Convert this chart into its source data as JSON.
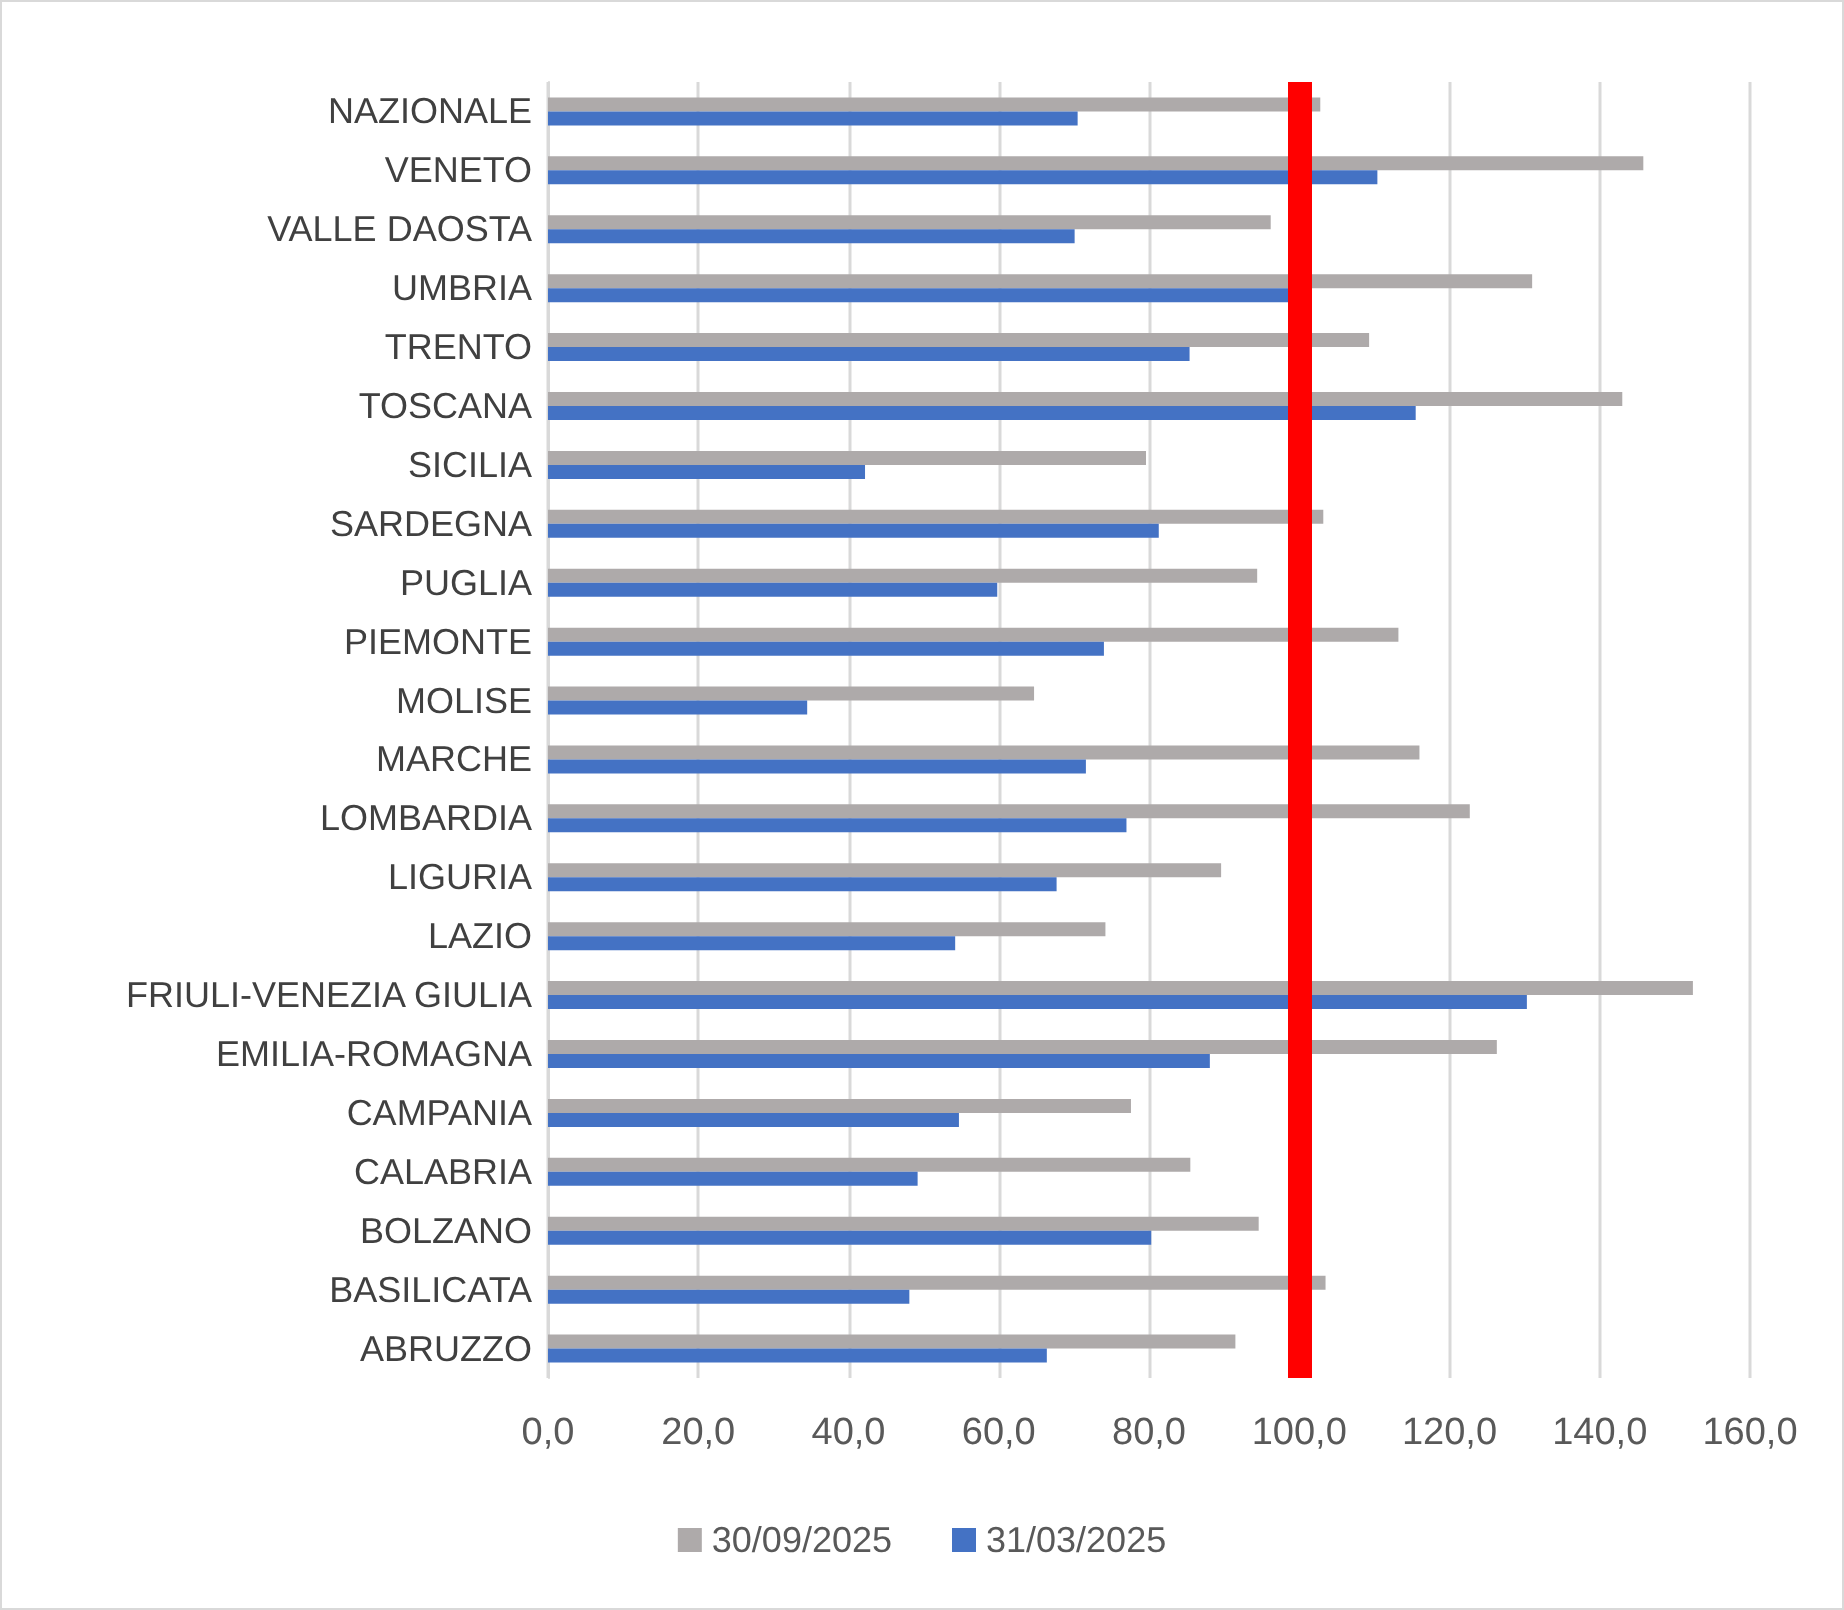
{
  "chart_data": {
    "type": "bar",
    "orientation": "horizontal",
    "categories": [
      "NAZIONALE",
      "VENETO",
      "VALLE DAOSTA",
      "UMBRIA",
      "TRENTO",
      "TOSCANA",
      "SICILIA",
      "SARDEGNA",
      "PUGLIA",
      "PIEMONTE",
      "MOLISE",
      "MARCHE",
      "LOMBARDIA",
      "LIGURIA",
      "LAZIO",
      "FRIULI-VENEZIA GIULIA",
      "EMILIA-ROMAGNA",
      "CAMPANIA",
      "CALABRIA",
      "BOLZANO",
      "BASILICATA",
      "ABRUZZO"
    ],
    "series": [
      {
        "name": "30/09/2025",
        "color": "#aeaaaa",
        "values": [
          102.8,
          145.8,
          96.2,
          131,
          109.3,
          143,
          79.6,
          103.2,
          94.4,
          113.2,
          64.7,
          116,
          122.7,
          89.6,
          74.2,
          152.4,
          126.3,
          77.6,
          85.5,
          94.6,
          103.5,
          91.5
        ]
      },
      {
        "name": "31/03/2025",
        "color": "#4472c4",
        "values": [
          70.5,
          110.4,
          70.1,
          99,
          85.4,
          115.5,
          42.2,
          81.3,
          59.8,
          74,
          34.5,
          71.6,
          77,
          67.7,
          54.2,
          130.3,
          88.1,
          54.7,
          49.2,
          80.3,
          48.1,
          66.4
        ]
      }
    ],
    "xlim": [
      0,
      160
    ],
    "xticks": [
      {
        "value": 0,
        "label": "0,0"
      },
      {
        "value": 20,
        "label": "20,0"
      },
      {
        "value": 40,
        "label": "40,0"
      },
      {
        "value": 60,
        "label": "60,0"
      },
      {
        "value": 80,
        "label": "80,0"
      },
      {
        "value": 100,
        "label": "100,0"
      },
      {
        "value": 120,
        "label": "120,0"
      },
      {
        "value": 140,
        "label": "140,0"
      },
      {
        "value": 160,
        "label": "160,0"
      }
    ],
    "ref_lines": [
      {
        "axis": "x",
        "value": 100,
        "color": "#ff0000"
      }
    ],
    "grid": "x",
    "legend": "bottom"
  }
}
